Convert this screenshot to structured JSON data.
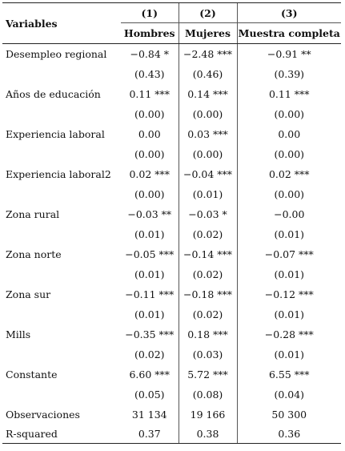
{
  "header": {
    "variables_label": "Variables",
    "columns": [
      {
        "num": "(1)",
        "name": "Hombres"
      },
      {
        "num": "(2)",
        "name": "Mujeres"
      },
      {
        "num": "(3)",
        "name": "Muestra completa"
      }
    ]
  },
  "rows": [
    {
      "label": "Desempleo regional",
      "coef": [
        "−0.84 *",
        "−2.48 ***",
        "−0.91 **"
      ],
      "se": [
        "(0.43)",
        "(0.46)",
        "(0.39)"
      ]
    },
    {
      "label": "Años de educación",
      "coef": [
        "0.11 ***",
        "0.14 ***",
        "0.11 ***"
      ],
      "se": [
        "(0.00)",
        "(0.00)",
        "(0.00)"
      ]
    },
    {
      "label": "Experiencia laboral",
      "coef": [
        "0.00",
        "0.03 ***",
        "0.00"
      ],
      "se": [
        "(0.00)",
        "(0.00)",
        "(0.00)"
      ]
    },
    {
      "label": "Experiencia laboral2",
      "coef": [
        "0.02 ***",
        "−0.04 ***",
        "0.02 ***"
      ],
      "se": [
        "(0.00)",
        "(0.01)",
        "(0.00)"
      ]
    },
    {
      "label": "Zona rural",
      "coef": [
        "−0.03 **",
        "−0.03 *",
        "−0.00"
      ],
      "se": [
        "(0.01)",
        "(0.02)",
        "(0.01)"
      ]
    },
    {
      "label": "Zona norte",
      "coef": [
        "−0.05 ***",
        "−0.14 ***",
        "−0.07 ***"
      ],
      "se": [
        "(0.01)",
        "(0.02)",
        "(0.01)"
      ]
    },
    {
      "label": "Zona sur",
      "coef": [
        "−0.11 ***",
        "−0.18 ***",
        "−0.12 ***"
      ],
      "se": [
        "(0.01)",
        "(0.02)",
        "(0.01)"
      ]
    },
    {
      "label": "Mills",
      "coef": [
        "−0.35 ***",
        "0.18 ***",
        "−0.28 ***"
      ],
      "se": [
        "(0.02)",
        "(0.03)",
        "(0.01)"
      ]
    },
    {
      "label": "Constante",
      "coef": [
        "6.60 ***",
        "5.72 ***",
        "6.55 ***"
      ],
      "se": [
        "(0.05)",
        "(0.08)",
        "(0.04)"
      ]
    }
  ],
  "stats": [
    {
      "label": "Observaciones",
      "values": [
        "31 134",
        "19 166",
        "50 300"
      ]
    },
    {
      "label": "R-squared",
      "values": [
        "0.37",
        "0.38",
        "0.36"
      ]
    }
  ]
}
